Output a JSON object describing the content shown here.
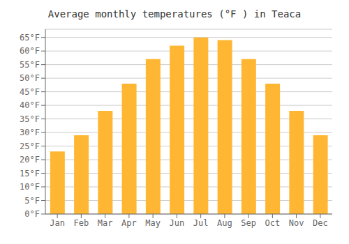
{
  "chart_data": {
    "type": "bar",
    "title": "Average monthly temperatures (°F ) in Teaca",
    "categories": [
      "Jan",
      "Feb",
      "Mar",
      "Apr",
      "May",
      "Jun",
      "Jul",
      "Aug",
      "Sep",
      "Oct",
      "Nov",
      "Dec"
    ],
    "values": [
      23,
      29,
      38,
      48,
      57,
      62,
      65,
      64,
      57,
      48,
      38,
      29
    ],
    "color": "#FFB733",
    "ylim": [
      0,
      68
    ],
    "yticks": [
      {
        "value": 0,
        "label": "0°F"
      },
      {
        "value": 5,
        "label": "5°F"
      },
      {
        "value": 10,
        "label": "10°F"
      },
      {
        "value": 15,
        "label": "15°F"
      },
      {
        "value": 20,
        "label": "20°F"
      },
      {
        "value": 25,
        "label": "25°F"
      },
      {
        "value": 30,
        "label": "30°F"
      },
      {
        "value": 35,
        "label": "35°F"
      },
      {
        "value": 40,
        "label": "40°F"
      },
      {
        "value": 45,
        "label": "45°F"
      },
      {
        "value": 50,
        "label": "50°F"
      },
      {
        "value": 55,
        "label": "55°F"
      },
      {
        "value": 60,
        "label": "60°F"
      },
      {
        "value": 65,
        "label": "65°F"
      }
    ],
    "grid": true
  }
}
